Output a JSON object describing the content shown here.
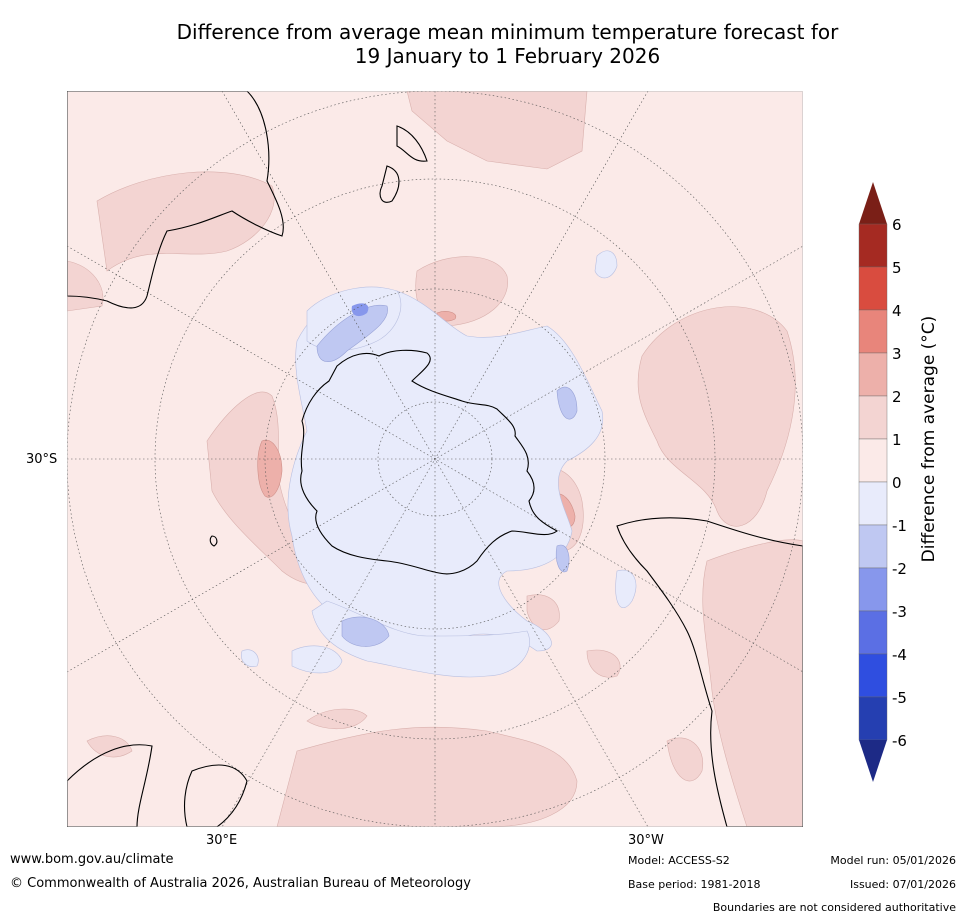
{
  "title": {
    "line1": "Difference from average mean minimum temperature forecast for",
    "line2": "19 January to 1 February 2026"
  },
  "map": {
    "projection": "south-polar stereographic",
    "lat_label": "30°S",
    "lon_label_east": "30°E",
    "lon_label_west": "30°W"
  },
  "colorbar": {
    "label": "Difference from average (°C)",
    "ticks": [
      "6",
      "5",
      "4",
      "3",
      "2",
      "1",
      "0",
      "-1",
      "-2",
      "-3",
      "-4",
      "-5",
      "-6"
    ],
    "colors": {
      "over": "#7a1f17",
      "c5_6": "#a52a22",
      "c4_5": "#d94c3f",
      "c3_4": "#e8857b",
      "c2_3": "#edb0aa",
      "c1_2": "#f3d4d2",
      "c0_1": "#fbeae8",
      "cm1_0": "#e8ebfb",
      "cm2_m1": "#bfc8f2",
      "cm3_m2": "#8797ec",
      "cm4_m3": "#5b6fe4",
      "cm5_m4": "#2f4ee0",
      "cm6_m5": "#253fb1",
      "under": "#1d2a86"
    }
  },
  "footer": {
    "url": "www.bom.gov.au/climate",
    "copyright": "© Commonwealth of Australia 2026, Australian Bureau of Meteorology",
    "model": "Model: ACCESS-S2",
    "base_period": "Base period: 1981-2018",
    "model_run": "Model run: 05/01/2026",
    "issued": "Issued: 07/01/2026",
    "disclaimer": "Boundaries are not considered authoritative"
  }
}
